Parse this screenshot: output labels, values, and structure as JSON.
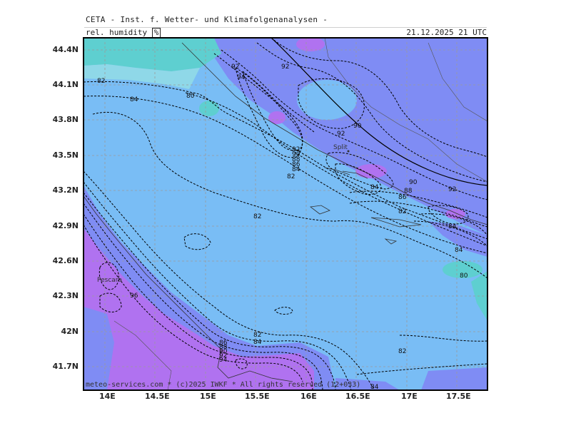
{
  "header": {
    "title": "CETA - Inst. f. Wetter- und Klimafolgenanalysen -",
    "param_label": "rel. humidity",
    "unit": "%",
    "datetime": "21.12.2025 21 UTC"
  },
  "footer": {
    "credit": "meteo-services.com * (c)2025 IWKF * All rights reserved (12+033)"
  },
  "axes": {
    "lat_labels": [
      "44.4N",
      "44.1N",
      "43.8N",
      "43.5N",
      "43.2N",
      "42.9N",
      "42.6N",
      "42.3N",
      "42N",
      "41.7N"
    ],
    "lon_labels": [
      "14E",
      "14.5E",
      "15E",
      "15.5E",
      "16E",
      "16.5E",
      "17E",
      "17.5E"
    ]
  },
  "colors": {
    "humidity_80_85": "#5ecfd0",
    "humidity_85_90": "#79bdf5",
    "humidity_90_95": "#7f8cf4",
    "humidity_95_plus": "#b072f0",
    "grid": "#9a9a9a",
    "contour": "#000000"
  },
  "cities": [
    "Split",
    "Pescara"
  ],
  "contour_labels": [
    "92",
    "94",
    "92",
    "82",
    "84",
    "80",
    "90",
    "92",
    "92",
    "90",
    "88",
    "86",
    "84",
    "82",
    "90",
    "88",
    "92",
    "84",
    "86",
    "82",
    "84",
    "82",
    "84",
    "80",
    "86",
    "88",
    "90",
    "92",
    "94",
    "82",
    "84",
    "96",
    "82",
    "84"
  ]
}
